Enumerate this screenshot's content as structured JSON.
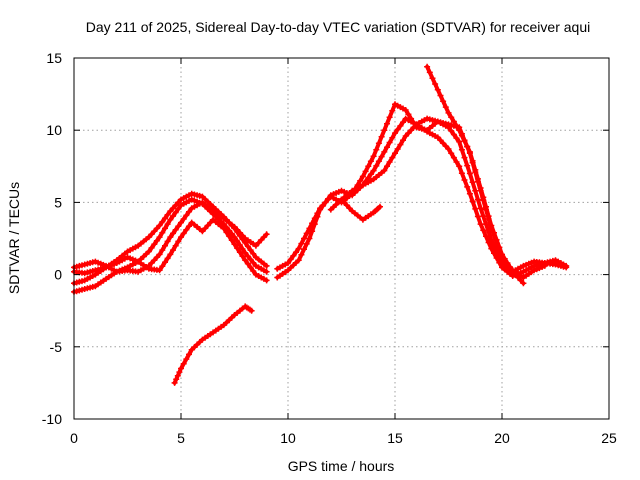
{
  "chart_data": {
    "type": "line",
    "title": "Day 211 of 2025, Sidereal Day-to-day VTEC variation (SDTVAR) for receiver aqui",
    "xlabel": "GPS time / hours",
    "ylabel": "SDTVAR / TECUs",
    "xlim": [
      0,
      25
    ],
    "ylim": [
      -10,
      15
    ],
    "xticks": [
      0,
      5,
      10,
      15,
      20,
      25
    ],
    "yticks": [
      -10,
      -5,
      0,
      5,
      10,
      15
    ],
    "xtick_labels": [
      "0",
      "5",
      "10",
      "15",
      "20",
      "25"
    ],
    "ytick_labels": [
      "-10",
      "-5",
      "0",
      "5",
      "10",
      "15"
    ],
    "grid": true,
    "marker": "+",
    "color": "#ff0000",
    "series": [
      {
        "name": "track-1",
        "x": [
          0.0,
          0.5,
          1.0,
          1.5,
          2.0,
          2.5,
          3.0,
          3.5,
          4.0,
          4.5,
          5.0,
          5.5,
          6.0,
          6.5,
          7.0,
          7.5,
          8.0,
          8.5,
          9.0
        ],
        "y": [
          -1.2,
          -1.0,
          -0.8,
          -0.3,
          0.2,
          0.5,
          0.9,
          1.6,
          2.6,
          3.8,
          4.8,
          5.2,
          4.9,
          4.2,
          3.5,
          2.6,
          1.5,
          0.6,
          0.2
        ]
      },
      {
        "name": "track-2",
        "x": [
          0.0,
          0.5,
          1.0,
          1.5,
          2.0,
          2.5,
          3.0,
          3.5,
          4.0,
          4.5,
          5.0,
          5.5,
          6.0,
          6.5,
          7.0,
          7.5,
          8.0,
          8.5,
          9.0
        ],
        "y": [
          -0.6,
          -0.4,
          0.0,
          0.5,
          1.0,
          1.6,
          2.0,
          2.6,
          3.4,
          4.4,
          5.2,
          5.6,
          5.4,
          4.7,
          4.0,
          3.2,
          2.2,
          1.2,
          0.6
        ]
      },
      {
        "name": "track-3",
        "x": [
          0.0,
          0.5,
          1.0,
          1.5,
          2.0,
          2.5,
          3.0,
          3.5,
          4.0,
          4.5,
          5.0,
          5.5,
          6.0,
          6.5,
          7.0,
          7.5,
          8.0,
          8.5,
          9.0
        ],
        "y": [
          0.5,
          0.7,
          0.9,
          0.6,
          0.2,
          0.3,
          0.2,
          0.6,
          1.4,
          2.6,
          3.6,
          4.6,
          5.0,
          4.4,
          3.9,
          3.3,
          2.5,
          2.0,
          2.8
        ]
      },
      {
        "name": "track-4",
        "x": [
          0.0,
          0.5,
          1.0,
          1.5,
          2.0,
          2.5,
          3.0,
          3.5,
          4.0,
          4.5,
          5.0,
          5.5,
          6.0,
          6.5,
          7.0,
          7.5,
          8.0,
          8.5,
          9.0
        ],
        "y": [
          0.2,
          0.1,
          0.3,
          0.5,
          0.8,
          1.2,
          0.9,
          0.4,
          0.3,
          1.4,
          2.6,
          3.6,
          3.0,
          3.8,
          3.2,
          2.1,
          1.0,
          0.0,
          -0.4
        ]
      },
      {
        "name": "track-5",
        "x": [
          4.7,
          5.0,
          5.5,
          6.0,
          6.5,
          7.0,
          7.5,
          8.0,
          8.3
        ],
        "y": [
          -7.5,
          -6.5,
          -5.2,
          -4.5,
          -4.0,
          -3.5,
          -2.8,
          -2.2,
          -2.5
        ]
      },
      {
        "name": "track-6",
        "x": [
          9.5,
          10.0,
          10.5,
          11.0,
          11.5,
          12.0,
          12.5,
          13.0,
          13.5,
          14.0,
          14.5,
          15.0,
          15.5,
          16.0,
          16.5,
          17.0,
          17.5,
          18.0,
          18.5,
          19.0,
          19.5,
          20.0,
          20.5,
          21.0,
          21.5,
          22.0,
          22.5,
          23.0
        ],
        "y": [
          -0.2,
          0.3,
          1.0,
          2.5,
          4.5,
          5.5,
          5.8,
          5.5,
          6.2,
          7.2,
          8.5,
          9.8,
          10.8,
          10.4,
          9.9,
          9.5,
          8.7,
          7.5,
          5.6,
          3.5,
          1.8,
          0.5,
          -0.1,
          0.2,
          0.6,
          0.8,
          0.7,
          0.5
        ]
      },
      {
        "name": "track-7",
        "x": [
          9.5,
          10.0,
          10.5,
          11.0,
          11.5,
          12.0,
          12.5,
          13.0,
          13.5,
          14.0,
          14.5,
          15.0,
          15.5,
          16.0,
          16.5,
          17.0,
          17.5,
          18.0,
          18.5,
          19.0,
          19.5,
          20.0,
          20.5,
          21.0,
          21.5,
          22.0,
          22.5,
          23.0
        ],
        "y": [
          0.4,
          0.8,
          1.8,
          3.2,
          4.6,
          5.4,
          5.0,
          5.6,
          6.8,
          8.2,
          10.0,
          11.8,
          11.4,
          10.2,
          10.0,
          10.6,
          10.2,
          9.2,
          7.0,
          4.6,
          2.4,
          0.8,
          0.2,
          0.6,
          0.9,
          0.8,
          1.0,
          0.6
        ]
      },
      {
        "name": "track-8",
        "x": [
          12.0,
          12.5,
          13.0,
          13.5,
          14.0,
          14.5,
          15.0,
          15.5,
          16.0,
          16.5,
          17.0,
          17.5,
          18.0,
          18.5,
          19.0,
          19.5,
          20.0,
          20.5,
          21.0,
          21.5,
          22.0
        ],
        "y": [
          4.5,
          5.2,
          5.8,
          6.2,
          6.6,
          7.2,
          8.4,
          9.6,
          10.4,
          10.8,
          10.6,
          10.4,
          10.2,
          8.4,
          5.8,
          3.2,
          1.2,
          0.3,
          -0.2,
          0.3,
          0.6
        ]
      },
      {
        "name": "track-9",
        "x": [
          12.5,
          13.0,
          13.5,
          14.0,
          14.3
        ],
        "y": [
          5.2,
          4.4,
          3.8,
          4.3,
          4.7
        ]
      },
      {
        "name": "track-10",
        "x": [
          16.5,
          17.0,
          17.5,
          18.0,
          18.5,
          19.0,
          19.5,
          20.0,
          20.5,
          21.0
        ],
        "y": [
          14.4,
          12.8,
          11.2,
          10.0,
          8.5,
          6.0,
          3.4,
          1.4,
          0.2,
          -0.6
        ]
      }
    ]
  }
}
